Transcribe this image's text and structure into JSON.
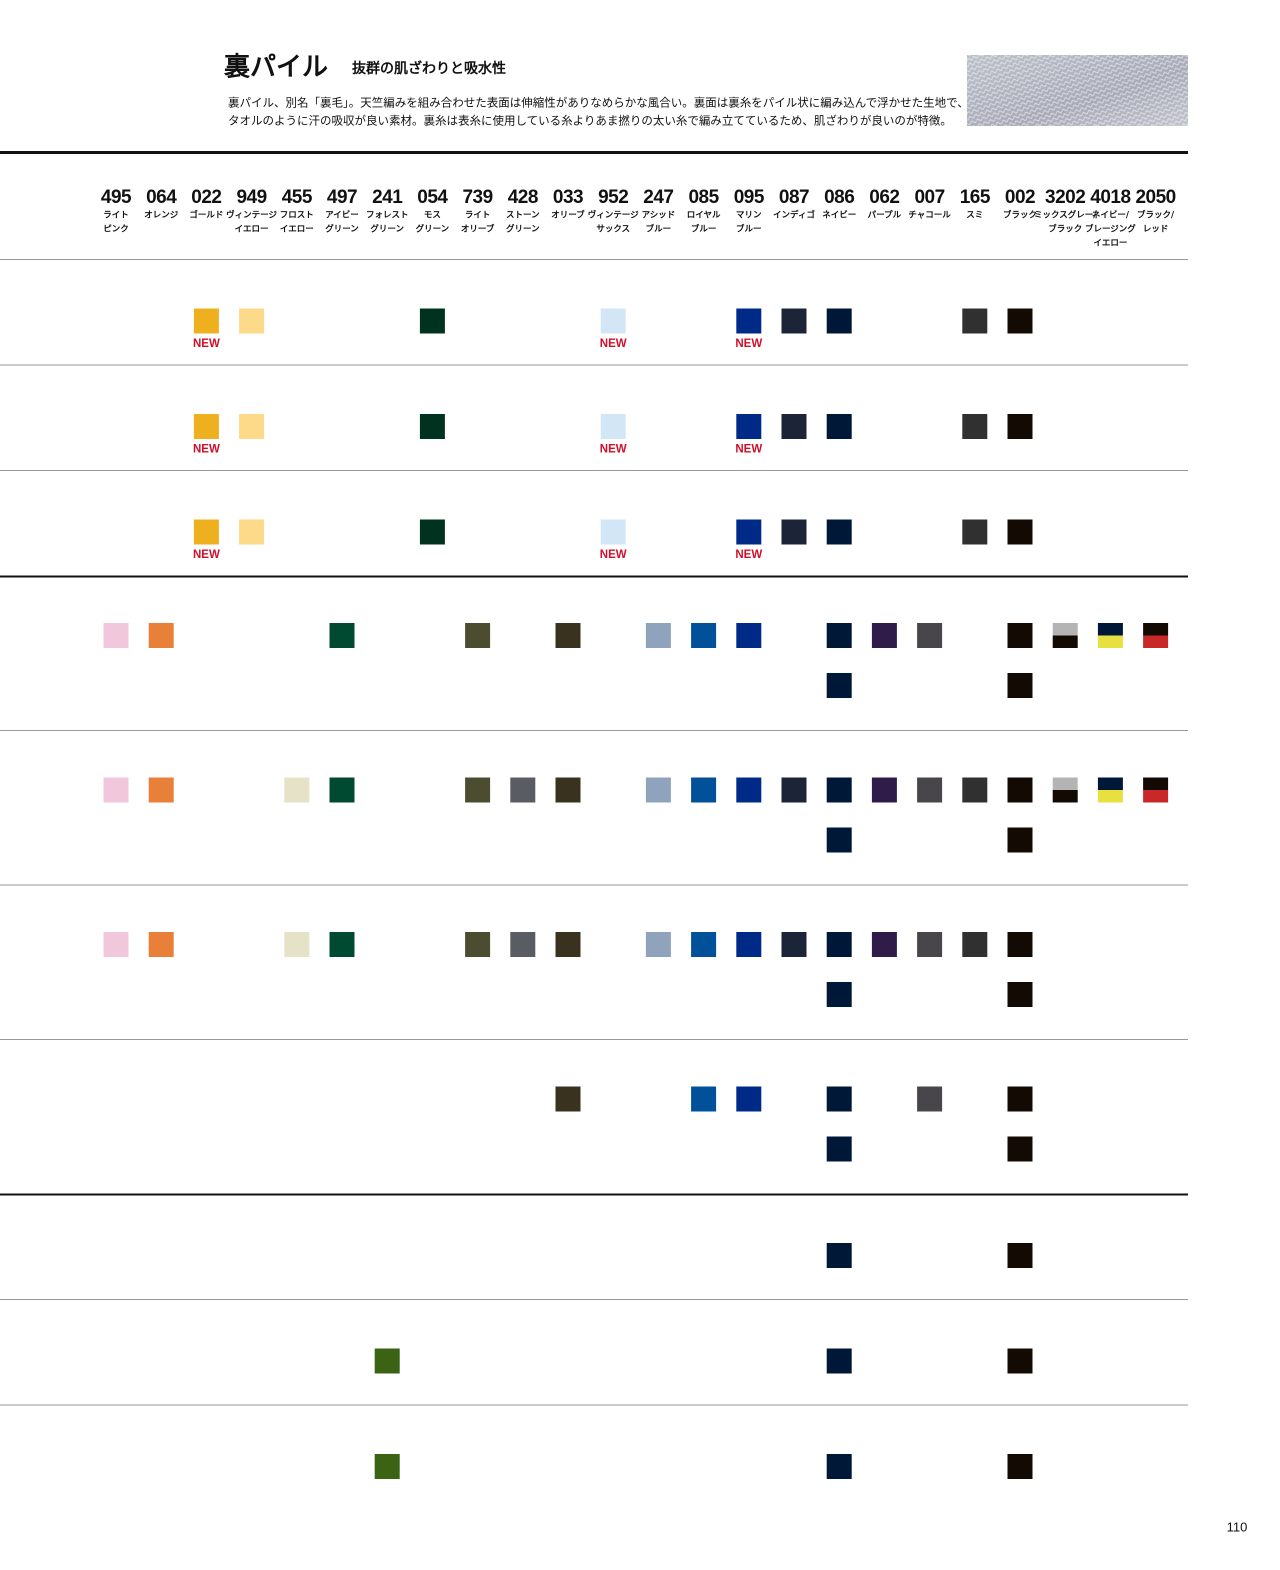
{
  "header": {
    "title": "裏パイル",
    "subtitle": "抜群の肌ざわりと吸水性",
    "description": [
      "裏パイル、別名「裏毛」。天竺編みを組み合わせた表面は伸縮性がありなめらかな風合い。裏面は裏糸をパイル状に編み込んで浮かせた生地で、",
      "タオルのように汗の吸収が良い素材。裏糸は表糸に使用している糸よりあま撚りの太い糸で編み立てているため、肌ざわりが良いのが特徴。"
    ]
  },
  "columns": [
    {
      "code": "495",
      "name": [
        "ライト",
        "ピンク"
      ],
      "colors": [
        "#f1c7dc"
      ]
    },
    {
      "code": "064",
      "name": [
        "オレンジ"
      ],
      "colors": [
        "#e8803a"
      ]
    },
    {
      "code": "022",
      "name": [
        "ゴールド"
      ],
      "colors": [
        "#efb020"
      ]
    },
    {
      "code": "949",
      "name": [
        "ヴィンテージ",
        "イエロー"
      ],
      "colors": [
        "#fdd98a"
      ]
    },
    {
      "code": "455",
      "name": [
        "フロスト",
        "イエロー"
      ],
      "colors": [
        "#e6e2c8"
      ]
    },
    {
      "code": "497",
      "name": [
        "アイビー",
        "グリーン"
      ],
      "colors": [
        "#004a32"
      ]
    },
    {
      "code": "241",
      "name": [
        "フォレスト",
        "グリーン"
      ],
      "colors": [
        "#3a6414"
      ]
    },
    {
      "code": "054",
      "name": [
        "モス",
        "グリーン"
      ],
      "colors": [
        "#003220"
      ]
    },
    {
      "code": "739",
      "name": [
        "ライト",
        "オリーブ"
      ],
      "colors": [
        "#4c4c30"
      ]
    },
    {
      "code": "428",
      "name": [
        "ストーン",
        "グリーン"
      ],
      "colors": [
        "#5a5c64"
      ]
    },
    {
      "code": "033",
      "name": [
        "オリーブ"
      ],
      "colors": [
        "#38321e"
      ]
    },
    {
      "code": "952",
      "name": [
        "ヴィンテージ",
        "サックス"
      ],
      "colors": [
        "#d2e6f5"
      ]
    },
    {
      "code": "247",
      "name": [
        "アシッド",
        "ブルー"
      ],
      "colors": [
        "#8fa4bc"
      ]
    },
    {
      "code": "085",
      "name": [
        "ロイヤル",
        "ブルー"
      ],
      "colors": [
        "#00509a"
      ]
    },
    {
      "code": "095",
      "name": [
        "マリン",
        "ブルー"
      ],
      "colors": [
        "#002a88"
      ]
    },
    {
      "code": "087",
      "name": [
        "インディゴ"
      ],
      "colors": [
        "#1c2438"
      ]
    },
    {
      "code": "086",
      "name": [
        "ネイビー"
      ],
      "colors": [
        "#001838"
      ]
    },
    {
      "code": "062",
      "name": [
        "パープル"
      ],
      "colors": [
        "#301c48"
      ]
    },
    {
      "code": "007",
      "name": [
        "チャコール"
      ],
      "colors": [
        "#48464a"
      ]
    },
    {
      "code": "165",
      "name": [
        "スミ"
      ],
      "colors": [
        "#303030"
      ]
    },
    {
      "code": "002",
      "name": [
        "ブラック"
      ],
      "colors": [
        "#140a04"
      ]
    },
    {
      "code": "3202",
      "name": [
        "ミックスグレー/",
        "ブラック"
      ],
      "colors": [
        "#b4b4b4",
        "#140a04"
      ]
    },
    {
      "code": "4018",
      "name": [
        "ネイビー/",
        "ブレージング",
        "イエロー"
      ],
      "colors": [
        "#001838",
        "#e8e040"
      ]
    },
    {
      "code": "2050",
      "name": [
        "ブラック/",
        "レッド"
      ],
      "colors": [
        "#140a04",
        "#c82828"
      ]
    }
  ],
  "rows": [
    {
      "lines": [
        [
          null,
          null,
          "NEW",
          true,
          null,
          null,
          null,
          true,
          null,
          null,
          null,
          "NEW",
          null,
          null,
          "NEW",
          true,
          true,
          null,
          null,
          true,
          true,
          null,
          null,
          null
        ]
      ]
    },
    {
      "lines": [
        [
          null,
          null,
          "NEW",
          true,
          null,
          null,
          null,
          true,
          null,
          null,
          null,
          "NEW",
          null,
          null,
          "NEW",
          true,
          true,
          null,
          null,
          true,
          true,
          null,
          null,
          null
        ]
      ]
    },
    {
      "lines": [
        [
          null,
          null,
          "NEW",
          true,
          null,
          null,
          null,
          true,
          null,
          null,
          null,
          "NEW",
          null,
          null,
          "NEW",
          true,
          true,
          null,
          null,
          true,
          true,
          null,
          null,
          null
        ]
      ]
    },
    {
      "lines": [
        [
          true,
          true,
          null,
          null,
          null,
          true,
          null,
          null,
          true,
          null,
          true,
          null,
          true,
          true,
          true,
          null,
          true,
          true,
          true,
          null,
          true,
          true,
          true,
          true
        ],
        [
          null,
          null,
          null,
          null,
          null,
          null,
          null,
          null,
          null,
          null,
          null,
          null,
          null,
          null,
          null,
          null,
          true,
          null,
          null,
          null,
          true,
          null,
          null,
          null
        ]
      ]
    },
    {
      "lines": [
        [
          true,
          true,
          null,
          null,
          true,
          true,
          null,
          null,
          true,
          true,
          true,
          null,
          true,
          true,
          true,
          true,
          true,
          true,
          true,
          true,
          true,
          true,
          true,
          true
        ],
        [
          null,
          null,
          null,
          null,
          null,
          null,
          null,
          null,
          null,
          null,
          null,
          null,
          null,
          null,
          null,
          null,
          true,
          null,
          null,
          null,
          true,
          null,
          null,
          null
        ]
      ]
    },
    {
      "lines": [
        [
          true,
          true,
          null,
          null,
          true,
          true,
          null,
          null,
          true,
          true,
          true,
          null,
          true,
          true,
          true,
          true,
          true,
          true,
          true,
          true,
          true,
          null,
          null,
          null
        ],
        [
          null,
          null,
          null,
          null,
          null,
          null,
          null,
          null,
          null,
          null,
          null,
          null,
          null,
          null,
          null,
          null,
          true,
          null,
          null,
          null,
          true,
          null,
          null,
          null
        ]
      ]
    },
    {
      "lines": [
        [
          null,
          null,
          null,
          null,
          null,
          null,
          null,
          null,
          null,
          null,
          true,
          null,
          null,
          true,
          true,
          null,
          true,
          null,
          true,
          null,
          true,
          null,
          null,
          null
        ],
        [
          null,
          null,
          null,
          null,
          null,
          null,
          null,
          null,
          null,
          null,
          null,
          null,
          null,
          null,
          null,
          null,
          true,
          null,
          null,
          null,
          true,
          null,
          null,
          null
        ]
      ]
    },
    {
      "lines": [
        [
          null,
          null,
          null,
          null,
          null,
          null,
          null,
          null,
          null,
          null,
          null,
          null,
          null,
          null,
          null,
          null,
          true,
          null,
          null,
          null,
          true,
          null,
          null,
          null
        ]
      ]
    },
    {
      "lines": [
        [
          null,
          null,
          null,
          null,
          null,
          null,
          true,
          null,
          null,
          null,
          null,
          null,
          null,
          null,
          null,
          null,
          true,
          null,
          null,
          null,
          true,
          null,
          null,
          null
        ]
      ]
    },
    {
      "lines": [
        [
          null,
          null,
          null,
          null,
          null,
          null,
          true,
          null,
          null,
          null,
          null,
          null,
          null,
          null,
          null,
          null,
          true,
          null,
          null,
          null,
          true,
          null,
          null,
          null
        ]
      ]
    }
  ],
  "page_number": "110"
}
